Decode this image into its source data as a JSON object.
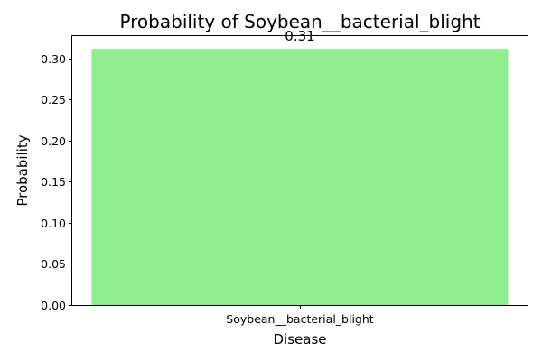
{
  "chart_data": {
    "type": "bar",
    "title": "Probability of Soybean__bacterial_blight",
    "xlabel": "Disease",
    "ylabel": "Probability",
    "categories": [
      "Soybean__bacterial_blight"
    ],
    "values": [
      0.3115
    ],
    "data_labels": [
      "0.31"
    ],
    "ylim": [
      0,
      0.327
    ],
    "yticks": [
      0.0,
      0.05,
      0.1,
      0.15,
      0.2,
      0.25,
      0.3
    ],
    "ytick_labels": [
      "0.00",
      "0.05",
      "0.10",
      "0.15",
      "0.20",
      "0.25",
      "0.30"
    ],
    "grid": false,
    "bar_color": "#90EE90"
  }
}
